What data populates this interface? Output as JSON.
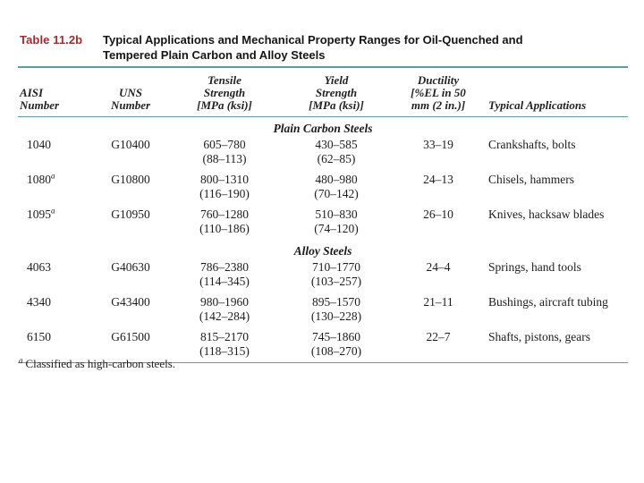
{
  "page": {
    "title_label": "Table 11.2b",
    "title_line1": "Typical Applications and Mechanical Property Ranges for Oil-Quenched and",
    "title_line2": "Tempered Plain Carbon and Alloy Steels"
  },
  "colors": {
    "accent_red": "#A32A30",
    "rule_teal": "#5F9EA0"
  },
  "table": {
    "headers": {
      "aisi": [
        "AISI",
        "Number"
      ],
      "uns": [
        "UNS",
        "Number"
      ],
      "tensile": [
        "Tensile",
        "Strength",
        "[MPa (ksi)]"
      ],
      "yield": [
        "Yield",
        "Strength",
        "[MPa (ksi)]"
      ],
      "ductility": [
        "Ductility",
        "[%EL in 50",
        "mm (2 in.)]"
      ],
      "applications": "Typical Applications"
    },
    "sections": [
      {
        "name": "Plain Carbon Steels",
        "rows": [
          {
            "aisi": "1040",
            "sup": "",
            "uns": "G10400",
            "tensile_mpa": "605–780",
            "tensile_ksi": "(88–113)",
            "yield_mpa": "430–585",
            "yield_ksi": "(62–85)",
            "ductility": "33–19",
            "applications": "Crankshafts, bolts"
          },
          {
            "aisi": "1080",
            "sup": "a",
            "uns": "G10800",
            "tensile_mpa": "800–1310",
            "tensile_ksi": "(116–190)",
            "yield_mpa": "480–980",
            "yield_ksi": "(70–142)",
            "ductility": "24–13",
            "applications": "Chisels, hammers"
          },
          {
            "aisi": "1095",
            "sup": "a",
            "uns": "G10950",
            "tensile_mpa": "760–1280",
            "tensile_ksi": "(110–186)",
            "yield_mpa": "510–830",
            "yield_ksi": "(74–120)",
            "ductility": "26–10",
            "applications": "Knives, hacksaw blades"
          }
        ]
      },
      {
        "name": "Alloy Steels",
        "rows": [
          {
            "aisi": "4063",
            "sup": "",
            "uns": "G40630",
            "tensile_mpa": "786–2380",
            "tensile_ksi": "(114–345)",
            "yield_mpa": "710–1770",
            "yield_ksi": "(103–257)",
            "ductility": "24–4",
            "applications": "Springs, hand tools"
          },
          {
            "aisi": "4340",
            "sup": "",
            "uns": "G43400",
            "tensile_mpa": "980–1960",
            "tensile_ksi": "(142–284)",
            "yield_mpa": "895–1570",
            "yield_ksi": "(130–228)",
            "ductility": "21–11",
            "applications": "Bushings, aircraft tubing"
          },
          {
            "aisi": "6150",
            "sup": "",
            "uns": "G61500",
            "tensile_mpa": "815–2170",
            "tensile_ksi": "(118–315)",
            "yield_mpa": "745–1860",
            "yield_ksi": "(108–270)",
            "ductility": "22–7",
            "applications": "Shafts, pistons, gears"
          }
        ]
      }
    ]
  },
  "footnote": {
    "sup": "a",
    "text": "Classified as high-carbon steels."
  }
}
